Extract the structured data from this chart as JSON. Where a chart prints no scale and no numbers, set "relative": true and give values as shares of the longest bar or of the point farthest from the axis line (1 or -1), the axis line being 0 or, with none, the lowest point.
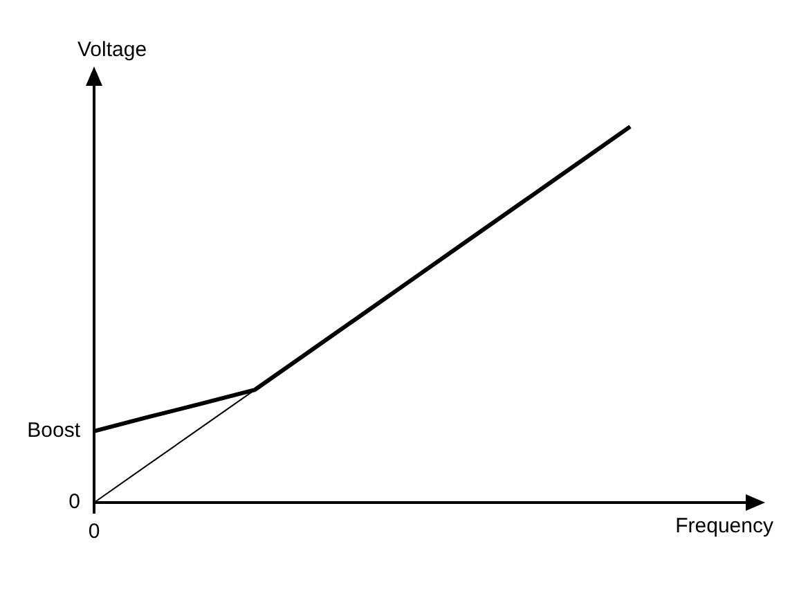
{
  "chart_data": {
    "type": "line",
    "relative": true,
    "xlabel": "Frequency",
    "ylabel": "Voltage",
    "marker": "none",
    "categories": [
      null,
      null,
      null,
      null,
      null,
      null,
      null,
      null,
      null,
      null,
      null,
      null,
      null
    ],
    "series": [
      {
        "color": "#000000",
        "values": [
          0.19,
          0.227,
          0.263,
          0.3,
          0.4,
          0.5,
          0.6,
          0.7,
          0.8,
          0.9,
          1,
          null,
          null
        ]
      },
      {
        "color": "#000000",
        "values": [
          0,
          0.1,
          0.2,
          0.3,
          null,
          null,
          null,
          null,
          null,
          null,
          null,
          null,
          null
        ]
      }
    ],
    "annotations": [
      "Boost",
      "0",
      "0"
    ]
  }
}
